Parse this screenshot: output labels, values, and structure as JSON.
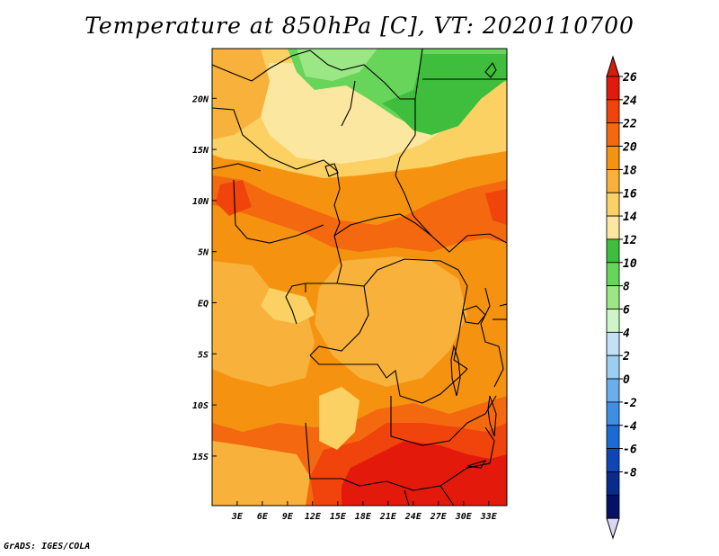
{
  "title": "Temperature at 850hPa [C], VT: 2020110700",
  "credit": "GrADS: IGES/COLA",
  "map": {
    "lat_ticks": [
      {
        "label": "20N",
        "lat": 20
      },
      {
        "label": "15N",
        "lat": 15
      },
      {
        "label": "10N",
        "lat": 10
      },
      {
        "label": "5N",
        "lat": 5
      },
      {
        "label": "EQ",
        "lat": 0
      },
      {
        "label": "5S",
        "lat": -5
      },
      {
        "label": "10S",
        "lat": -10
      },
      {
        "label": "15S",
        "lat": -15
      }
    ],
    "lon_ticks": [
      {
        "label": "3E",
        "lon": 3
      },
      {
        "label": "6E",
        "lon": 6
      },
      {
        "label": "9E",
        "lon": 9
      },
      {
        "label": "12E",
        "lon": 12
      },
      {
        "label": "15E",
        "lon": 15
      },
      {
        "label": "18E",
        "lon": 18
      },
      {
        "label": "21E",
        "lon": 21
      },
      {
        "label": "24E",
        "lon": 24
      },
      {
        "label": "27E",
        "lon": 27
      },
      {
        "label": "30E",
        "lon": 30
      },
      {
        "label": "33E",
        "lon": 33
      }
    ]
  },
  "colorbar": {
    "labels": [
      "26",
      "24",
      "22",
      "20",
      "18",
      "16",
      "14",
      "12",
      "10",
      "8",
      "6",
      "4",
      "2",
      "0",
      "-2",
      "-4",
      "-6",
      "-8"
    ],
    "colors": [
      "#e31a0b",
      "#f0440c",
      "#f4690f",
      "#f59310",
      "#f8b13b",
      "#fbd163",
      "#fbe79f",
      "#3ebe3c",
      "#67d45a",
      "#9be685",
      "#cdf5c7",
      "#c2e1f7",
      "#9acef3",
      "#6aaeec",
      "#3e8fe4",
      "#1b6bd6",
      "#0f46b3",
      "#082b8c",
      "#041167"
    ],
    "top_arrow_color": "#d11e0a",
    "bottom_arrow_color": "#dcd6f5"
  }
}
